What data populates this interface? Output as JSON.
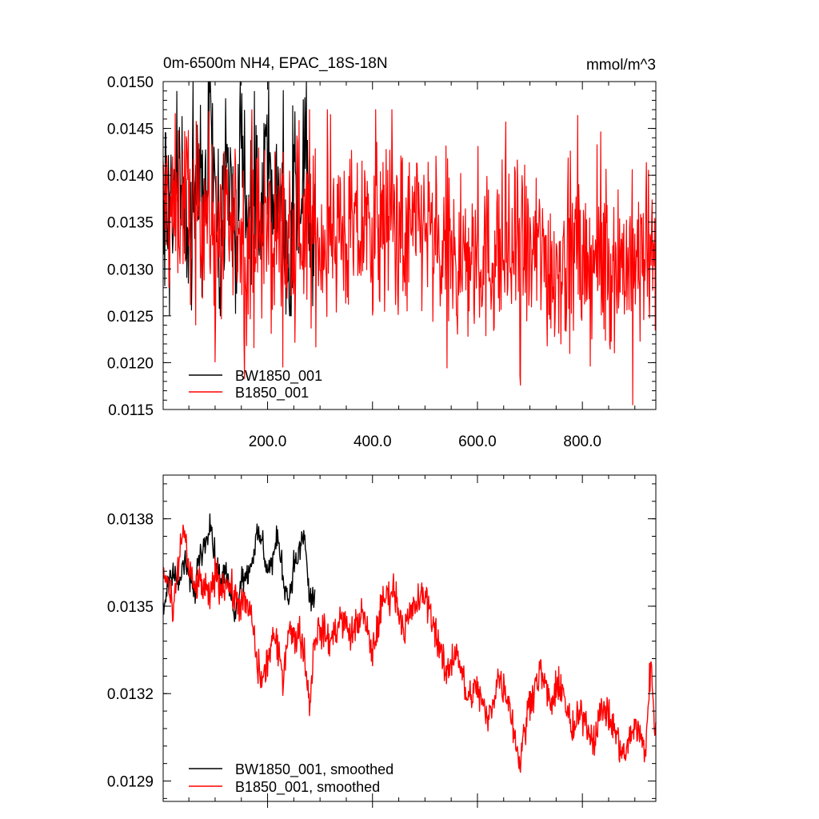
{
  "chart_data": [
    {
      "type": "line",
      "title": "0m-6500m NH4, EPAC_18S-18N",
      "units": "mmol/m^3",
      "xlabel": "",
      "ylabel": "",
      "xlim": [
        1,
        940
      ],
      "ylim": [
        0.0115,
        0.015
      ],
      "x_ticks": [
        200,
        400,
        600,
        800
      ],
      "x_tick_labels": [
        "200.0",
        "400.0",
        "600.0",
        "800.0"
      ],
      "y_ticks": [
        0.0115,
        0.012,
        0.0125,
        0.013,
        0.0135,
        0.014,
        0.0145,
        0.015
      ],
      "y_tick_labels": [
        "0.0115",
        "0.0120",
        "0.0125",
        "0.0130",
        "0.0135",
        "0.0140",
        "0.0145",
        "0.0150"
      ],
      "grid": false,
      "legend_position": "bottom-left",
      "series": [
        {
          "name": "BW1850_001",
          "color": "#000000",
          "x_range": [
            1,
            290
          ],
          "approx_mean": 0.01365,
          "approx_min": 0.0125,
          "approx_max": 0.015,
          "values_sampled_every_10": [
            0.0136,
            0.0138,
            0.0134,
            0.0141,
            0.0137,
            0.0132,
            0.0139,
            0.0143,
            0.0135,
            0.015,
            0.0136,
            0.0133,
            0.0142,
            0.0138,
            0.0131,
            0.0146,
            0.0137,
            0.0134,
            0.014,
            0.0136,
            0.0144,
            0.0133,
            0.0139,
            0.0137,
            0.0128,
            0.0141,
            0.0136,
            0.0145,
            0.0132,
            0.0134
          ]
        },
        {
          "name": "B1850_001",
          "color": "#ff0000",
          "x_range": [
            1,
            940
          ],
          "approx_min": 0.01155,
          "approx_max": 0.0147,
          "values_sampled_every_20": [
            0.0137,
            0.0136,
            0.0138,
            0.0135,
            0.0137,
            0.0134,
            0.0133,
            0.0135,
            0.0132,
            0.0134,
            0.0133,
            0.0134,
            0.0131,
            0.0135,
            0.0134,
            0.0133,
            0.0135,
            0.0134,
            0.0133,
            0.0134,
            0.0135,
            0.0134,
            0.0136,
            0.0133,
            0.0134,
            0.0135,
            0.0131,
            0.0132,
            0.013,
            0.0131,
            0.0132,
            0.0131,
            0.0132,
            0.0131,
            0.0133,
            0.0131,
            0.0132,
            0.013,
            0.0131,
            0.0132,
            0.013,
            0.0131,
            0.013,
            0.0131,
            0.0131,
            0.013,
            0.0131,
            0.013
          ]
        }
      ]
    },
    {
      "type": "line",
      "title": "",
      "xlabel": "",
      "ylabel": "",
      "xlim": [
        1,
        940
      ],
      "ylim": [
        0.01283,
        0.01395
      ],
      "y_ticks": [
        0.0129,
        0.0132,
        0.0135,
        0.0138
      ],
      "y_tick_labels": [
        "0.0129",
        "0.0132",
        "0.0135",
        "0.0138"
      ],
      "grid": false,
      "legend_position": "bottom-left",
      "series": [
        {
          "name": "BW1850_001, smoothed",
          "color": "#000000",
          "x": [
            1,
            10,
            20,
            30,
            40,
            50,
            60,
            70,
            80,
            90,
            100,
            110,
            120,
            130,
            140,
            150,
            160,
            170,
            180,
            190,
            200,
            210,
            220,
            230,
            240,
            250,
            260,
            270,
            280,
            290
          ],
          "y": [
            0.01348,
            0.01358,
            0.01364,
            0.01356,
            0.01365,
            0.01361,
            0.01354,
            0.01368,
            0.01371,
            0.01381,
            0.01366,
            0.01359,
            0.01362,
            0.01353,
            0.01348,
            0.01361,
            0.0136,
            0.01366,
            0.01374,
            0.01372,
            0.01362,
            0.01366,
            0.01374,
            0.0136,
            0.01352,
            0.01364,
            0.01368,
            0.01375,
            0.01352,
            0.01353
          ]
        },
        {
          "name": "B1850_001, smoothed",
          "color": "#ff0000",
          "x": [
            1,
            10,
            20,
            30,
            40,
            50,
            60,
            70,
            80,
            90,
            100,
            110,
            120,
            130,
            140,
            150,
            160,
            170,
            180,
            190,
            200,
            210,
            220,
            230,
            240,
            250,
            260,
            270,
            280,
            290,
            300,
            320,
            340,
            360,
            380,
            400,
            420,
            440,
            460,
            480,
            500,
            520,
            540,
            560,
            580,
            600,
            620,
            640,
            660,
            680,
            700,
            720,
            740,
            760,
            780,
            800,
            820,
            840,
            860,
            880,
            900,
            920,
            930,
            940
          ],
          "y": [
            0.01362,
            0.01358,
            0.01346,
            0.01364,
            0.01378,
            0.01362,
            0.01356,
            0.01358,
            0.01356,
            0.01352,
            0.01362,
            0.01356,
            0.01359,
            0.01356,
            0.01352,
            0.01351,
            0.0135,
            0.01346,
            0.0133,
            0.01324,
            0.01331,
            0.0134,
            0.01334,
            0.01326,
            0.01344,
            0.01338,
            0.01342,
            0.01334,
            0.01316,
            0.0134,
            0.01342,
            0.01338,
            0.01346,
            0.0134,
            0.01348,
            0.01334,
            0.01352,
            0.01356,
            0.01342,
            0.0135,
            0.01354,
            0.01342,
            0.01326,
            0.01336,
            0.01318,
            0.01322,
            0.0131,
            0.01326,
            0.01318,
            0.01296,
            0.01318,
            0.01328,
            0.01316,
            0.01324,
            0.01306,
            0.01314,
            0.01304,
            0.01316,
            0.01308,
            0.01298,
            0.0131,
            0.013,
            0.0133,
            0.01306
          ]
        }
      ]
    }
  ]
}
